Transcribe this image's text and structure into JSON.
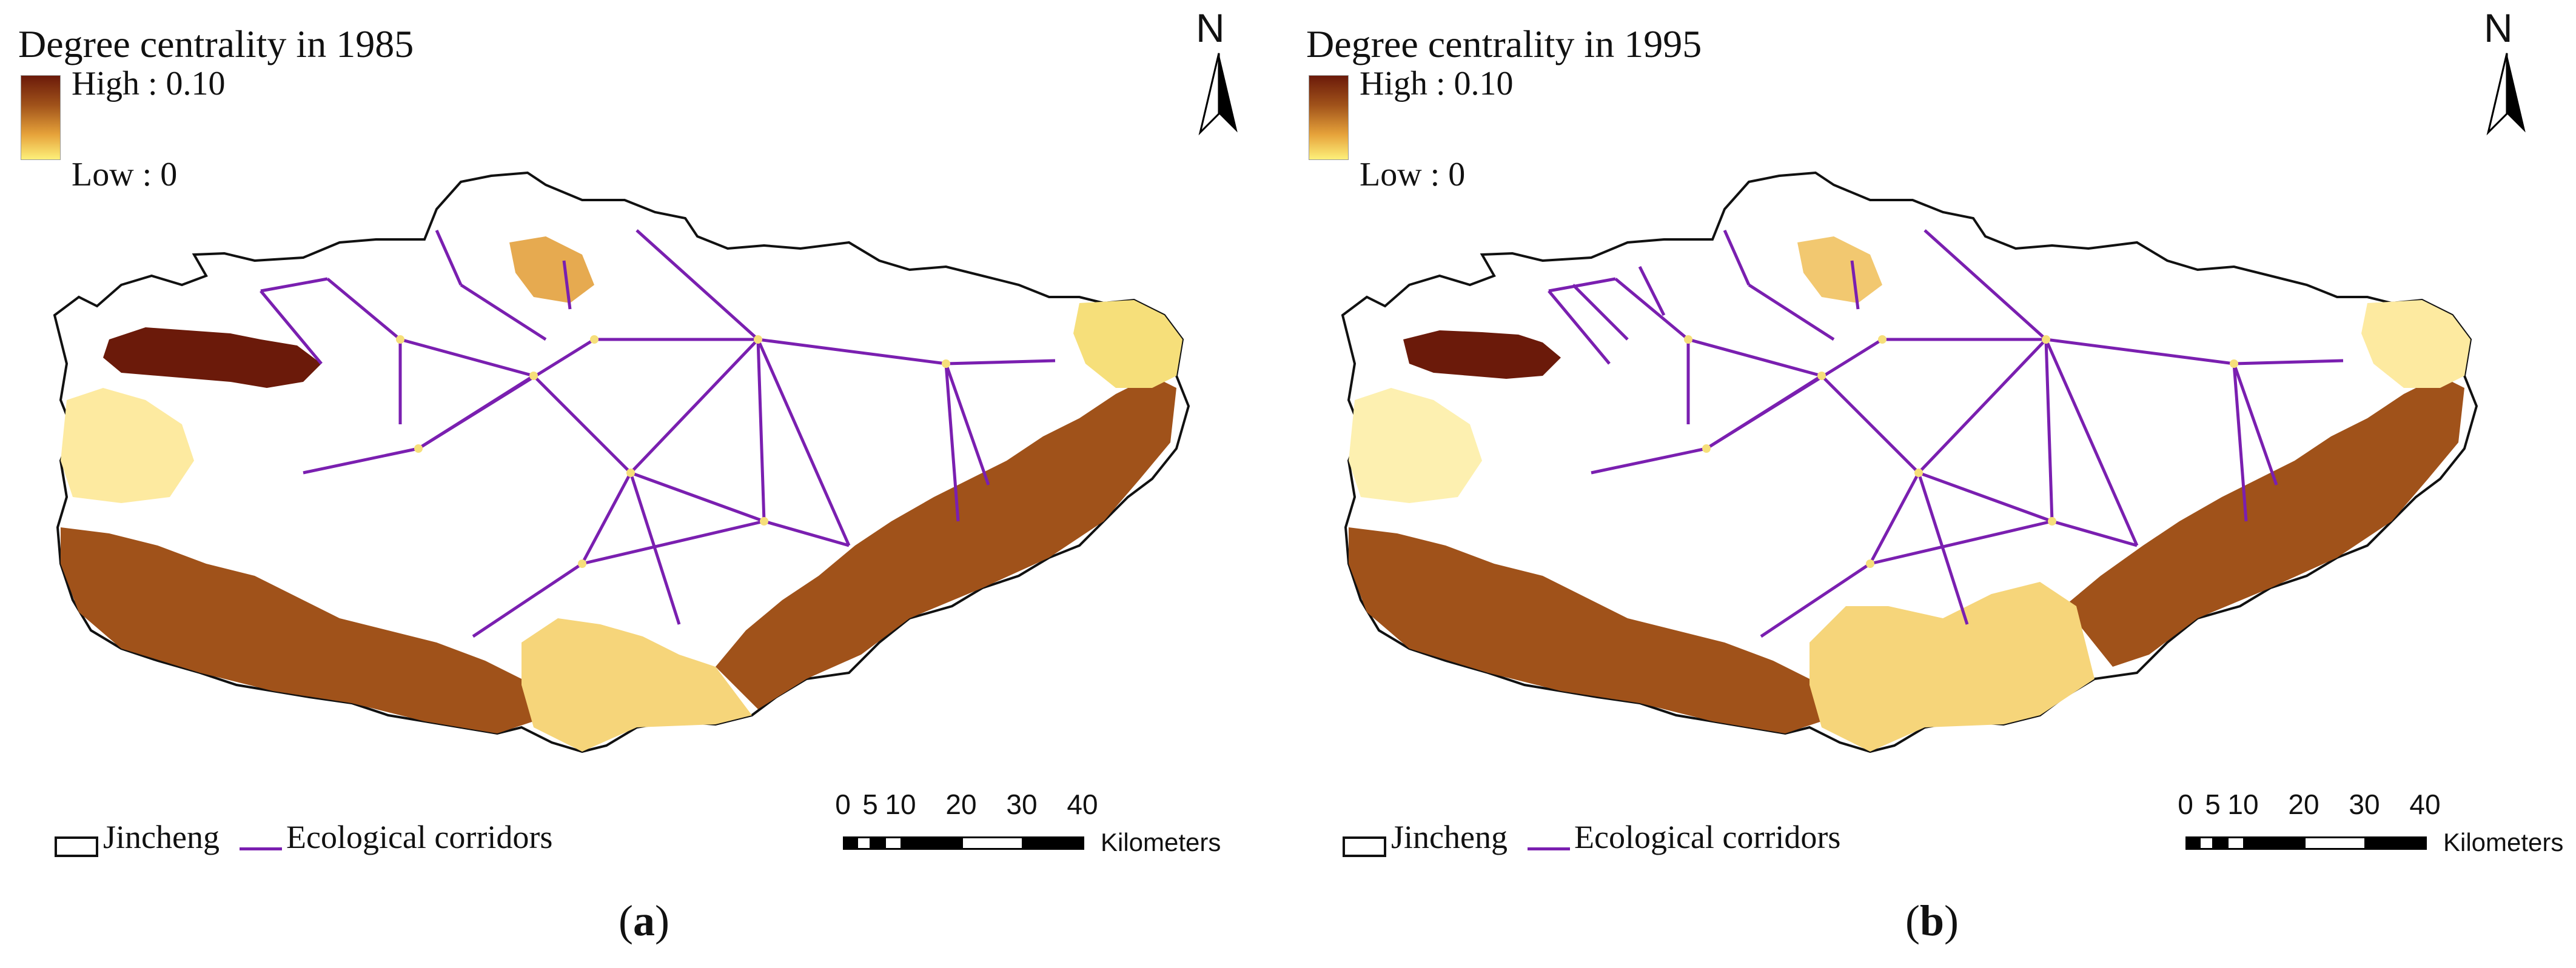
{
  "panels": [
    {
      "title": "Degree centrality in 1985",
      "high_label": "High : 0.10",
      "low_label": "Low : 0",
      "north": "N",
      "boundary_label": "Jincheng",
      "corridor_label": "Ecological corridors",
      "scale_ticks": [
        "0",
        "5",
        "10",
        "20",
        "30",
        "40"
      ],
      "scale_unit": "Kilometers",
      "caption_open": "(",
      "caption_letter": "a",
      "caption_close": ")"
    },
    {
      "title": "Degree centrality in 1995",
      "high_label": "High : 0.10",
      "low_label": "Low : 0",
      "north": "N",
      "boundary_label": "Jincheng",
      "corridor_label": "Ecological corridors",
      "scale_ticks": [
        "0",
        "5",
        "10",
        "20",
        "30",
        "40"
      ],
      "scale_unit": "Kilometers",
      "caption_open": "(",
      "caption_letter": "b",
      "caption_close": ")"
    }
  ],
  "colors": {
    "high": "#6b1a0a",
    "mid_high": "#a0521a",
    "mid": "#d98a2b",
    "low": "#f6df7a",
    "lowest": "#fdf3a0",
    "corridor": "#7a1fb0",
    "boundary": "#111111"
  },
  "icons": [
    "north-arrow-icon"
  ]
}
